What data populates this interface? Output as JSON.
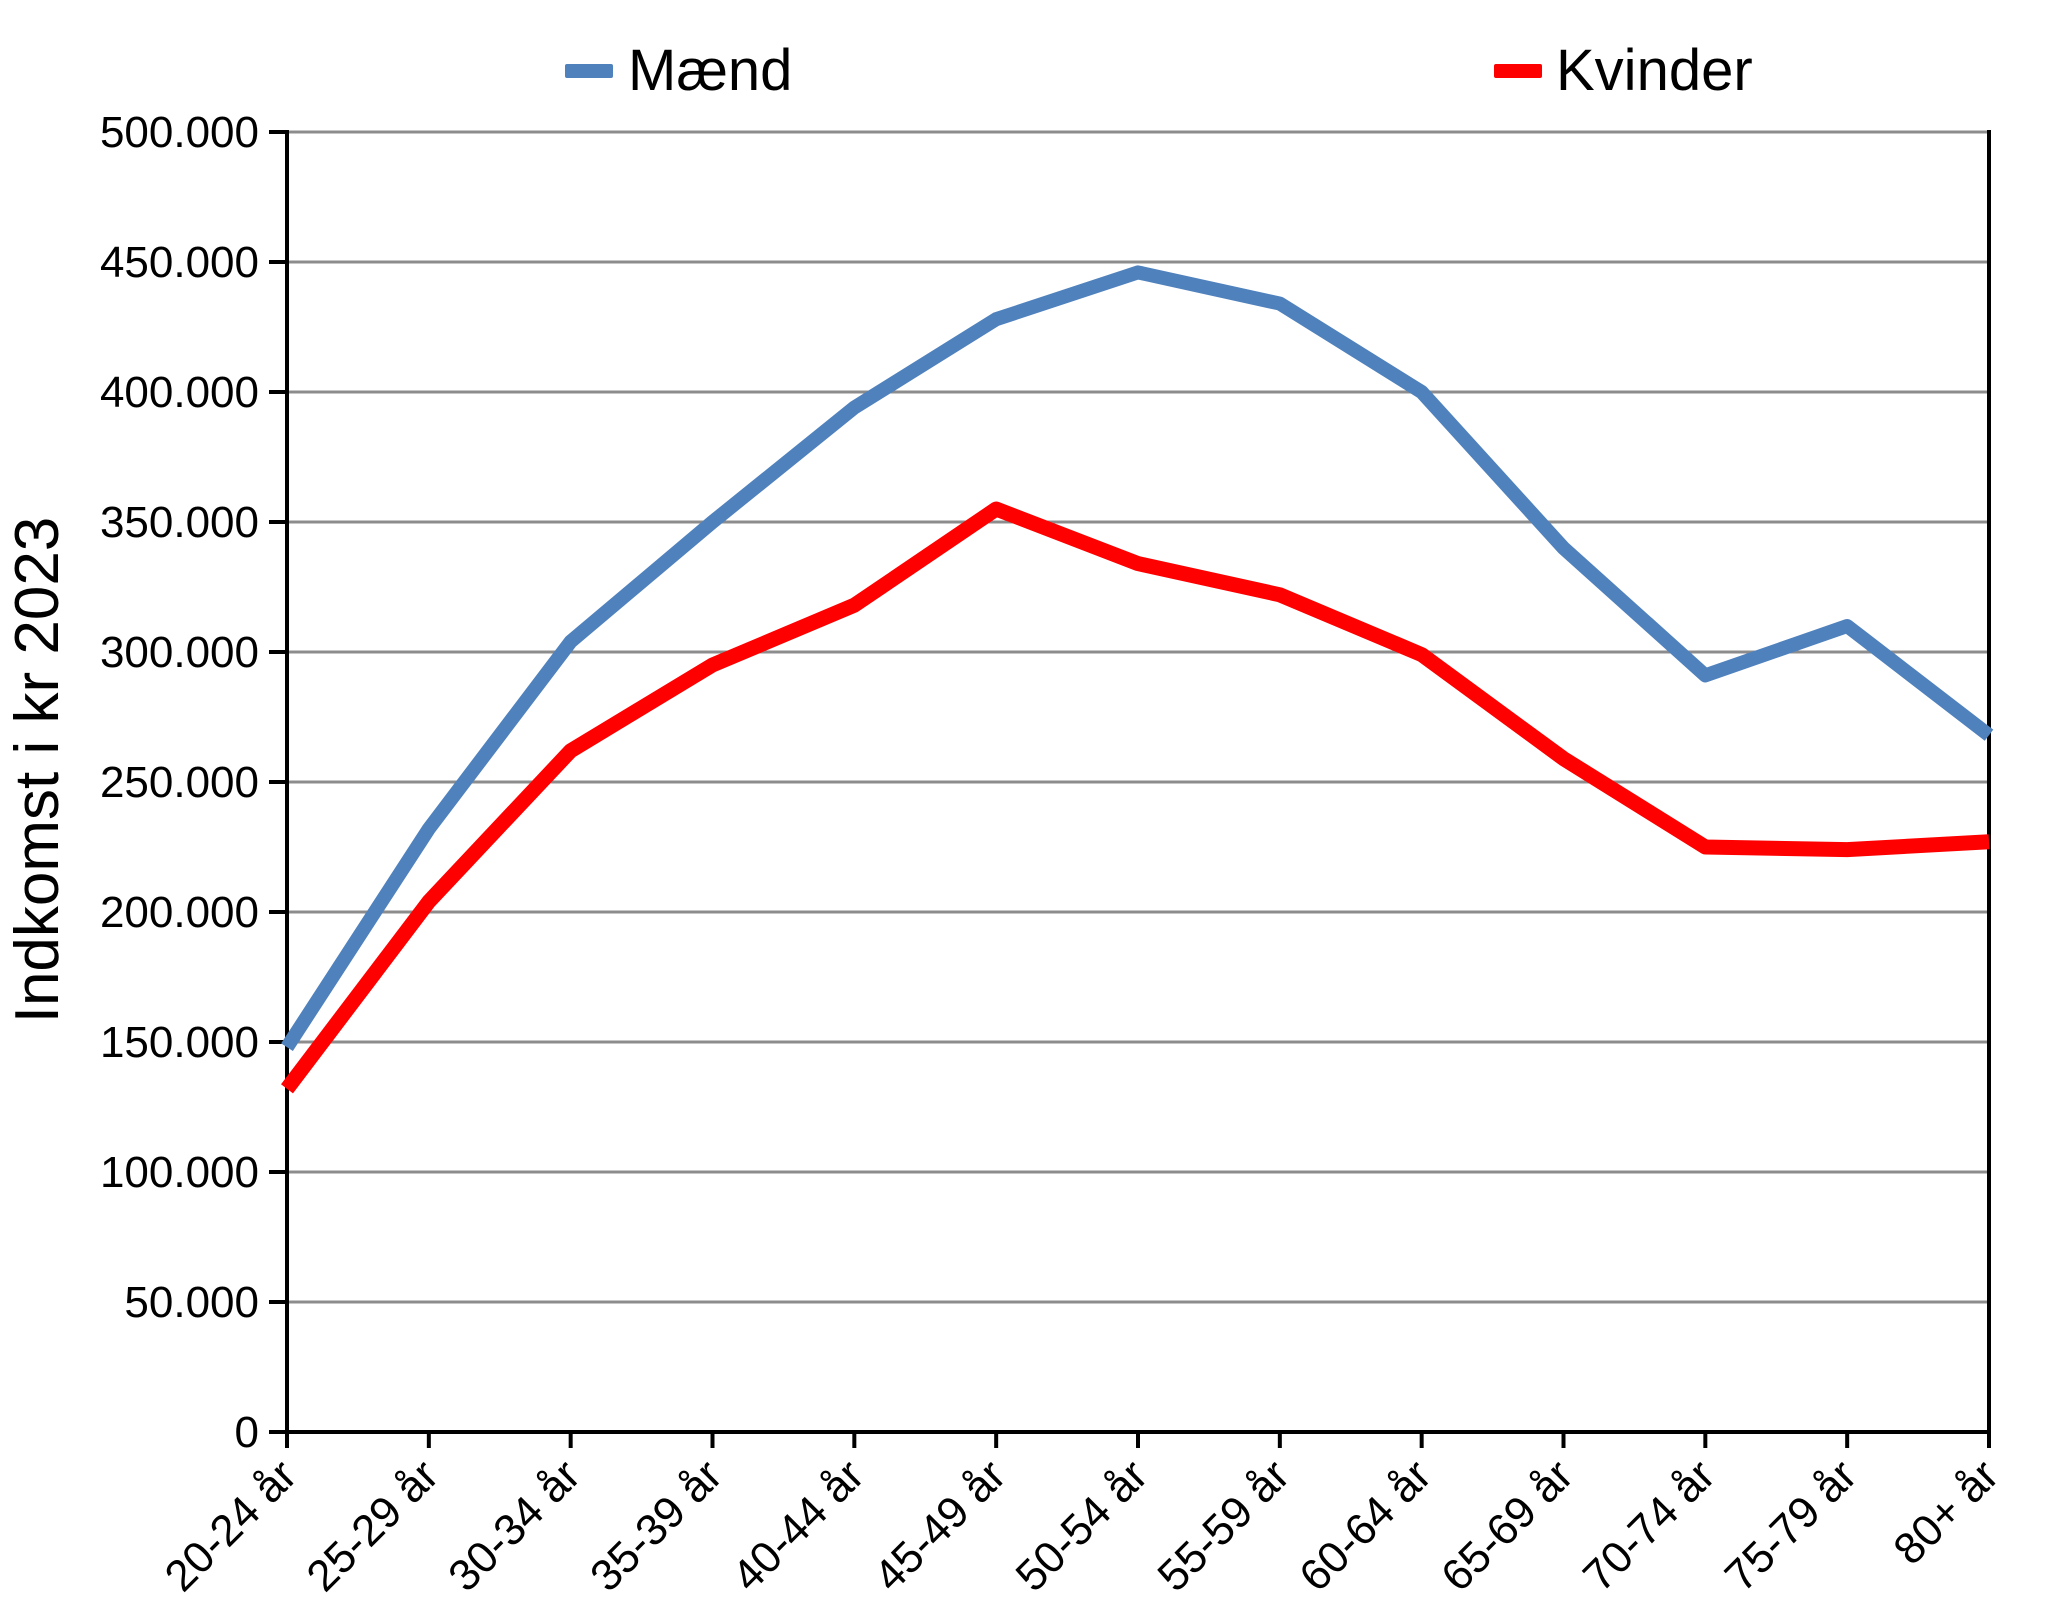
{
  "chart_data": {
    "type": "line",
    "title": "",
    "xlabel": "",
    "ylabel": "Indkomst i kr 2023",
    "categories": [
      "20-24 år",
      "25-29 år",
      "30-34 år",
      "35-39 år",
      "40-44 år",
      "45-49 år",
      "50-54 år",
      "55-59 år",
      "60-64 år",
      "65-69 år",
      "70-74 år",
      "75-79 år",
      "80+ år"
    ],
    "series": [
      {
        "name": "Mænd",
        "slug": "maend",
        "color": "#4F81BD",
        "stroke_width": 14,
        "values": [
          148000,
          232000,
          304000,
          350000,
          394000,
          428000,
          446000,
          434000,
          400000,
          340000,
          291000,
          310000,
          268000
        ]
      },
      {
        "name": "Kvinder",
        "slug": "kvinder",
        "color": "#FF0000",
        "stroke_width": 15,
        "values": [
          132000,
          204000,
          262000,
          295000,
          318000,
          355000,
          334000,
          322000,
          299000,
          259000,
          225000,
          224000,
          227000
        ]
      }
    ],
    "ylim": [
      0,
      500000
    ],
    "ytick_step": 50000,
    "ytick_labels": [
      "0",
      "50.000",
      "100.000",
      "150.000",
      "200.000",
      "250.000",
      "300.000",
      "350.000",
      "400.000",
      "450.000",
      "500.000"
    ],
    "grid": "horizontal",
    "legend_position": "top",
    "colors": {
      "axis": "#000000",
      "gridline": "#8C8C8C",
      "background": "#ffffff"
    }
  }
}
